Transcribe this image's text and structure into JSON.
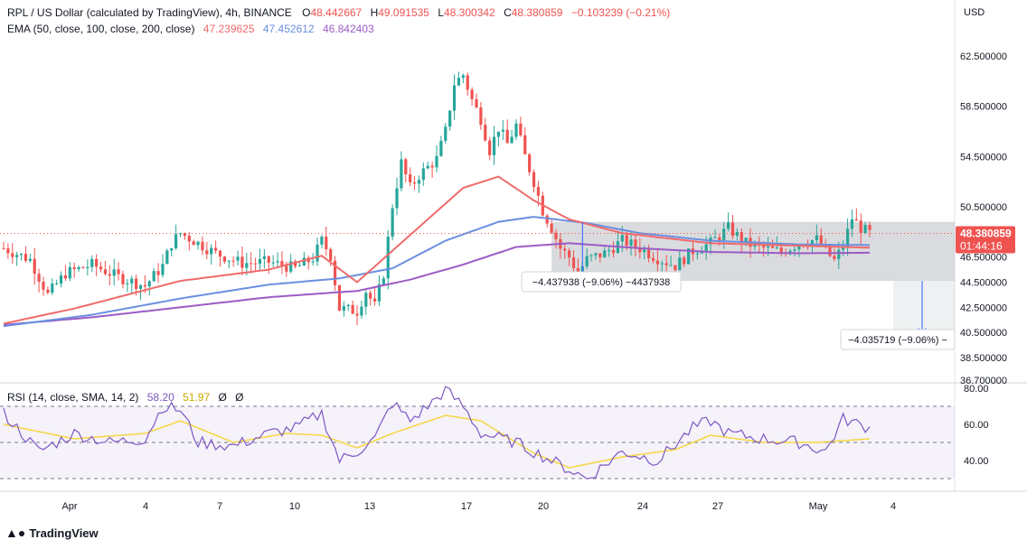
{
  "header": {
    "symbol_title": "RPL / US Dollar (calculated by TradingView), 4h, BINANCE",
    "o_label": "O",
    "o_value": "48.442667",
    "h_label": "H",
    "h_value": "49.091535",
    "l_label": "L",
    "l_value": "48.300342",
    "c_label": "C",
    "c_value": "48.380859",
    "change": "−0.103239 (−0.21%)"
  },
  "ema_legend": {
    "label": "EMA (50, close, 100, close, 200, close)",
    "ema50": "47.239625",
    "ema100": "47.452612",
    "ema200": "46.842403"
  },
  "rsi_legend": {
    "label": "RSI (14, close, SMA, 14, 2)",
    "rsi": "58.20",
    "sma": "51.97",
    "extra1": "Ø",
    "extra2": "Ø"
  },
  "currency": "USD",
  "last_price_tag": "48.380859",
  "countdown_tag": "01:44:16",
  "measure_label_1": "−4.437938 (−9.06%) −4437938",
  "measure_label_2": "−4.035719 (−9.06%) −",
  "brand": "TradingView",
  "colors": {
    "up": "#26a69a",
    "down": "#ef5350",
    "ema50": "#f06b6b",
    "ema100": "#6a8fe0",
    "ema200": "#9b5cc4",
    "rsi": "#7e57c2",
    "rsi_sma": "#f5d743",
    "tag_bg": "#ef5350"
  },
  "chart_data": [
    {
      "type": "candlestick",
      "title": "RPL / US Dollar (calculated by TradingView), 4h, BINANCE",
      "y_ticks": [
        "62.500000",
        "58.500000",
        "54.500000",
        "50.500000",
        "46.500000",
        "44.500000",
        "42.500000",
        "40.500000",
        "38.500000",
        "36.700000"
      ],
      "x_ticks": [
        "Apr",
        "4",
        "7",
        "10",
        "13",
        "17",
        "20",
        "24",
        "27",
        "May",
        "4"
      ],
      "last_price": 48.380859,
      "ema_keypoints": {
        "ema50": [
          [
            0,
            41.2
          ],
          [
            8,
            42.4
          ],
          [
            20,
            44.6
          ],
          [
            30,
            45.5
          ],
          [
            36,
            46.6
          ],
          [
            40,
            44.5
          ],
          [
            44,
            47.0
          ],
          [
            48,
            49.5
          ],
          [
            52,
            52.0
          ],
          [
            56,
            52.9
          ],
          [
            60,
            51.0
          ],
          [
            64,
            49.5
          ],
          [
            70,
            48.4
          ],
          [
            80,
            47.6
          ],
          [
            90,
            47.4
          ],
          [
            98,
            47.24
          ]
        ],
        "ema100": [
          [
            0,
            41.0
          ],
          [
            10,
            41.9
          ],
          [
            20,
            43.2
          ],
          [
            30,
            44.3
          ],
          [
            38,
            44.8
          ],
          [
            44,
            45.6
          ],
          [
            50,
            47.8
          ],
          [
            56,
            49.3
          ],
          [
            60,
            49.7
          ],
          [
            66,
            49.2
          ],
          [
            72,
            48.4
          ],
          [
            80,
            47.8
          ],
          [
            90,
            47.5
          ],
          [
            98,
            47.45
          ]
        ],
        "ema200": [
          [
            0,
            41.1
          ],
          [
            10,
            41.7
          ],
          [
            20,
            42.5
          ],
          [
            30,
            43.3
          ],
          [
            40,
            43.8
          ],
          [
            46,
            44.7
          ],
          [
            52,
            45.9
          ],
          [
            58,
            47.3
          ],
          [
            64,
            47.6
          ],
          [
            72,
            47.2
          ],
          [
            80,
            46.9
          ],
          [
            90,
            46.8
          ],
          [
            98,
            46.84
          ]
        ]
      },
      "measurement": {
        "change": -4.437938,
        "percent": -9.06
      }
    },
    {
      "type": "line",
      "title": "RSI (14, close, SMA, 14, 2)",
      "y_ticks": [
        "80.00",
        "60.00",
        "40.00"
      ],
      "bands": [
        70,
        50,
        30
      ],
      "rsi_keypoints": [
        [
          0,
          66
        ],
        [
          4,
          45
        ],
        [
          8,
          55
        ],
        [
          12,
          50
        ],
        [
          16,
          52
        ],
        [
          18,
          70
        ],
        [
          20,
          68
        ],
        [
          22,
          50
        ],
        [
          26,
          48
        ],
        [
          30,
          55
        ],
        [
          33,
          58
        ],
        [
          36,
          66
        ],
        [
          38,
          40
        ],
        [
          40,
          45
        ],
        [
          42,
          52
        ],
        [
          44,
          72
        ],
        [
          46,
          62
        ],
        [
          48,
          70
        ],
        [
          50,
          79
        ],
        [
          52,
          70
        ],
        [
          54,
          55
        ],
        [
          58,
          50
        ],
        [
          62,
          40
        ],
        [
          64,
          35
        ],
        [
          66,
          30
        ],
        [
          70,
          45
        ],
        [
          74,
          40
        ],
        [
          78,
          58
        ],
        [
          80,
          62
        ],
        [
          82,
          55
        ],
        [
          86,
          52
        ],
        [
          90,
          50
        ],
        [
          93,
          45
        ],
        [
          95,
          63
        ],
        [
          98,
          58
        ]
      ],
      "sma_keypoints": [
        [
          0,
          60
        ],
        [
          8,
          52
        ],
        [
          16,
          55
        ],
        [
          20,
          62
        ],
        [
          26,
          50
        ],
        [
          32,
          55
        ],
        [
          36,
          54
        ],
        [
          40,
          47
        ],
        [
          44,
          55
        ],
        [
          50,
          65
        ],
        [
          54,
          62
        ],
        [
          60,
          44
        ],
        [
          64,
          36
        ],
        [
          70,
          42
        ],
        [
          76,
          46
        ],
        [
          80,
          54
        ],
        [
          86,
          50
        ],
        [
          92,
          50
        ],
        [
          98,
          52
        ]
      ]
    }
  ]
}
